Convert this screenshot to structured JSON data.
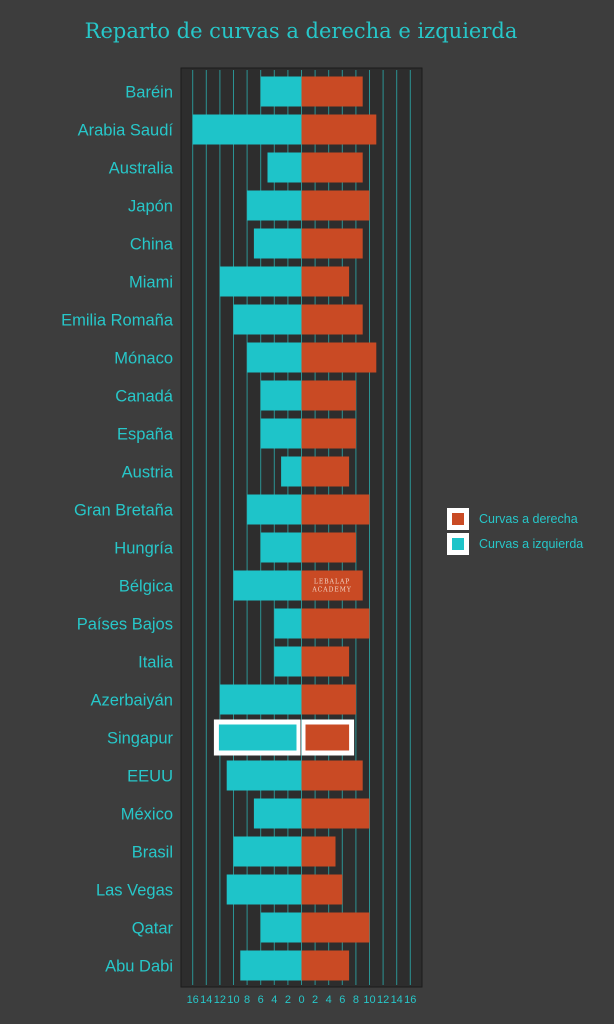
{
  "chart_data": {
    "type": "bar",
    "orientation": "horizontal-diverging",
    "title": "Reparto de curvas a derecha e izquierda",
    "categories": [
      "Baréin",
      "Arabia Saudí",
      "Australia",
      "Japón",
      "China",
      "Miami",
      "Emilia Romaña",
      "Mónaco",
      "Canadá",
      "España",
      "Austria",
      "Gran Bretaña",
      "Hungría",
      "Bélgica",
      "Países Bajos",
      "Italia",
      "Azerbaiyán",
      "Singapur",
      "EEUU",
      "México",
      "Brasil",
      "Las Vegas",
      "Qatar",
      "Abu Dabi"
    ],
    "series": [
      {
        "name": "Curvas a derecha",
        "values": [
          9,
          11,
          9,
          10,
          9,
          7,
          9,
          11,
          8,
          8,
          7,
          10,
          8,
          9,
          10,
          7,
          8,
          7,
          9,
          10,
          5,
          6,
          10,
          7
        ]
      },
      {
        "name": "Curvas a izquierda",
        "values": [
          6,
          16,
          5,
          8,
          7,
          12,
          10,
          8,
          6,
          6,
          3,
          8,
          6,
          10,
          4,
          4,
          12,
          12,
          11,
          7,
          10,
          11,
          6,
          9
        ]
      }
    ],
    "xticks": [
      "16",
      "14",
      "12",
      "10",
      "8",
      "6",
      "4",
      "2",
      "0",
      "2",
      "4",
      "6",
      "8",
      "10",
      "12",
      "14",
      "16"
    ],
    "xlim": [
      -17.5,
      17.5
    ],
    "highlight": "Singapur",
    "watermark": "LEBALAP ACADEMY",
    "legend_placement": "right",
    "grid": true,
    "colors": {
      "background": "#3d3d3d",
      "panel": "#2d2d2d",
      "grid": "#2bb5b5",
      "right": "#c94a24",
      "left": "#1ec4c9",
      "text": "#27c7c9",
      "highlight": "#ffffff"
    }
  }
}
